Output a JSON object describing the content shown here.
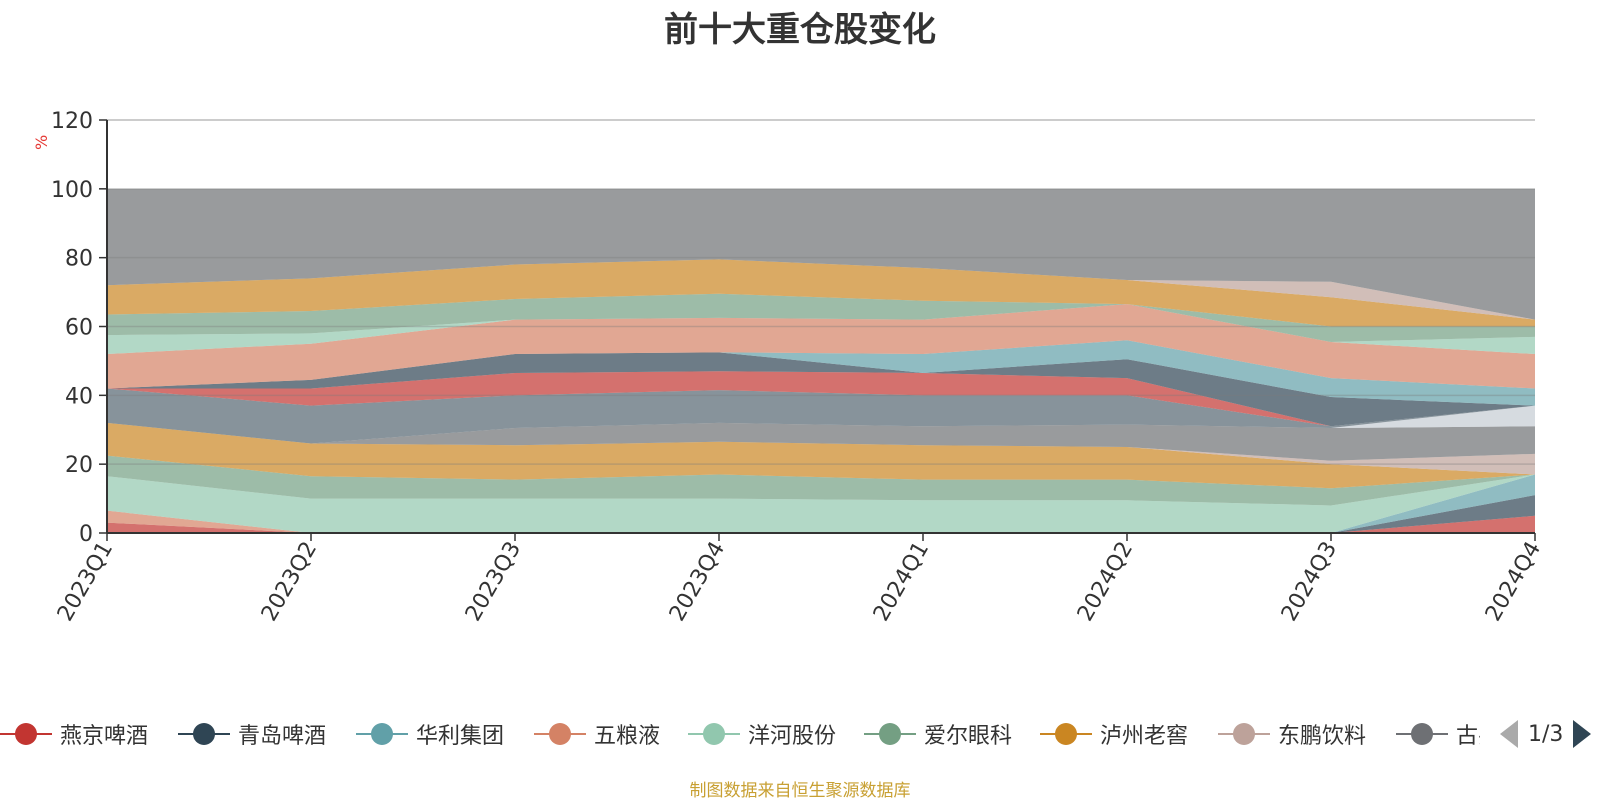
{
  "title": "前十大重仓股变化",
  "source": "制图数据来自恒生聚源数据库",
  "legend_page": "1/3",
  "chart_data": {
    "type": "area",
    "title": "前十大重仓股变化",
    "ylabel": "%",
    "ylim": [
      0,
      120
    ],
    "yticks": [
      0,
      20,
      40,
      60,
      80,
      100,
      120
    ],
    "categories": [
      "2023Q1",
      "2023Q2",
      "2023Q3",
      "2023Q4",
      "2024Q1",
      "2024Q2",
      "2024Q3",
      "2024Q4"
    ],
    "grid": true,
    "legend_position": "bottom",
    "legend_entries": [
      {
        "name": "燕京啤酒",
        "color": "#c23531"
      },
      {
        "name": "青岛啤酒",
        "color": "#2f4554"
      },
      {
        "name": "华利集团",
        "color": "#61a0a8"
      },
      {
        "name": "五粮液",
        "color": "#d48265"
      },
      {
        "name": "洋河股份",
        "color": "#91c7ae"
      },
      {
        "name": "爱尔眼科",
        "color": "#749f83"
      },
      {
        "name": "泸州老窖",
        "color": "#ca8622"
      },
      {
        "name": "东鹏饮料",
        "color": "#bda29a"
      },
      {
        "name": "古井贡酒",
        "color": "#6e7074"
      }
    ],
    "bands": [
      {
        "color": "#c23531",
        "top": [
          3,
          0,
          0,
          0,
          0,
          0,
          0,
          5
        ]
      },
      {
        "color": "#2f4554",
        "top": [
          3,
          0,
          0,
          0,
          0,
          0,
          0,
          11
        ]
      },
      {
        "color": "#d48265",
        "top": [
          6.5,
          0,
          0,
          0,
          0,
          0,
          0,
          11
        ]
      },
      {
        "color": "#61a0a8",
        "top": [
          6.5,
          0,
          0,
          0,
          0,
          0,
          0,
          17
        ]
      },
      {
        "color": "#91c7ae",
        "top": [
          16.5,
          10,
          10,
          10,
          9.5,
          9.5,
          8,
          17
        ]
      },
      {
        "color": "#749f83",
        "top": [
          22.5,
          16.5,
          15.5,
          17,
          15.5,
          15.5,
          13,
          17
        ]
      },
      {
        "color": "#ca8622",
        "top": [
          32,
          26,
          25.5,
          26.5,
          25.5,
          25,
          20,
          17
        ]
      },
      {
        "color": "#bda29a",
        "top": [
          32,
          26,
          25.5,
          26.5,
          25.5,
          25,
          21,
          23
        ]
      },
      {
        "color": "#6e7074",
        "top": [
          32,
          26,
          30.5,
          32,
          31,
          31.5,
          30.5,
          31
        ]
      },
      {
        "color": "#c4ccd3",
        "top": [
          32,
          26,
          30.5,
          32,
          31,
          31.5,
          30.5,
          37
        ]
      },
      {
        "color": "#546570",
        "top": [
          42,
          37,
          40,
          41.5,
          40,
          40,
          31,
          37
        ]
      },
      {
        "color": "#c23531",
        "top": [
          42,
          42,
          46.5,
          47,
          46.5,
          45,
          31,
          37
        ]
      },
      {
        "color": "#2f4554",
        "top": [
          42,
          44.5,
          52,
          52.5,
          46.5,
          50.5,
          39.5,
          37
        ]
      },
      {
        "color": "#61a0a8",
        "top": [
          42,
          44.5,
          52,
          52.5,
          52,
          56,
          45,
          42
        ]
      },
      {
        "color": "#d48265",
        "top": [
          52,
          55,
          62,
          62.5,
          62,
          66.5,
          55.5,
          52
        ]
      },
      {
        "color": "#91c7ae",
        "top": [
          57.5,
          58,
          62,
          62.5,
          62,
          66.5,
          55.5,
          57
        ]
      },
      {
        "color": "#749f83",
        "top": [
          63.5,
          64.5,
          68,
          69.5,
          67.5,
          66.5,
          60,
          60
        ]
      },
      {
        "color": "#ca8622",
        "top": [
          72,
          74,
          78,
          79.5,
          77,
          73.5,
          68.5,
          62
        ]
      },
      {
        "color": "#bda29a",
        "top": [
          72,
          74,
          78,
          79.5,
          77,
          73.5,
          73,
          62
        ]
      },
      {
        "color": "#6e7074",
        "top": [
          100,
          100,
          100,
          100,
          100,
          100,
          100,
          100
        ]
      }
    ]
  }
}
